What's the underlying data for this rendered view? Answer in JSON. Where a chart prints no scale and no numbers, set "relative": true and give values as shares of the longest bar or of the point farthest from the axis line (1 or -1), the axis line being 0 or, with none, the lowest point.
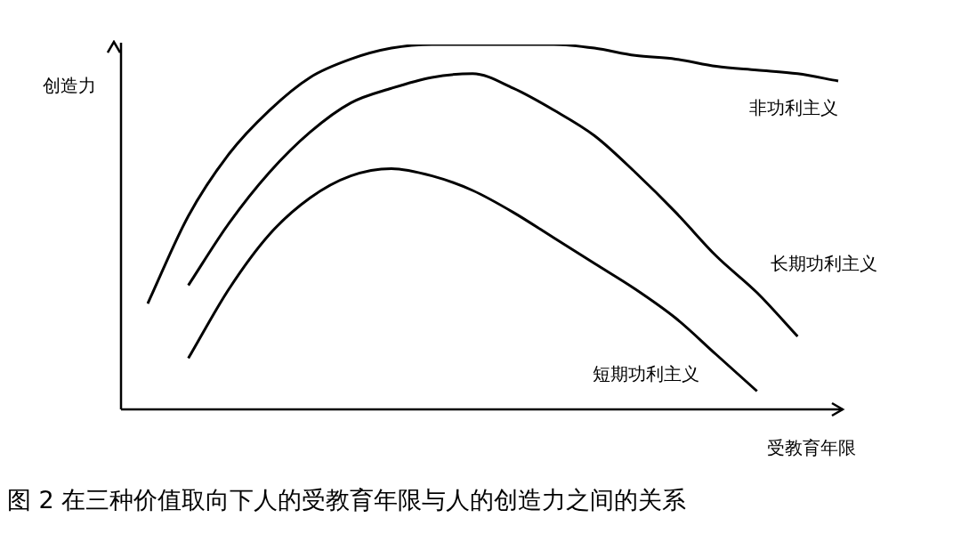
{
  "chart_data": {
    "type": "line",
    "relative": true,
    "title": "图 2  在三种价值取向下人的受教育年限与人的创造力之间的关系",
    "xlabel": "受教育年限",
    "ylabel": "创造力",
    "categories": [
      null,
      null,
      null,
      null,
      null,
      null,
      null,
      null,
      null,
      null,
      null,
      null,
      null,
      null,
      null,
      null,
      null,
      null
    ],
    "marker": "none",
    "line_style": "solid",
    "grid": false,
    "legend": false,
    "series": [
      {
        "name": "非功利主义",
        "color": "#000000",
        "values": [
          0.29,
          0.53,
          0.7,
          0.82,
          0.91,
          0.96,
          0.99,
          1.0,
          1.0,
          1.0,
          1.0,
          0.99,
          0.97,
          0.96,
          0.94,
          0.93,
          0.92,
          0.9
        ]
      },
      {
        "name": "长期功利主义",
        "color": "#000000",
        "values": [
          null,
          0.34,
          0.51,
          0.65,
          0.76,
          0.84,
          0.88,
          0.91,
          0.92,
          0.88,
          0.82,
          0.75,
          0.65,
          0.54,
          0.42,
          0.32,
          0.2,
          null
        ]
      },
      {
        "name": "短期功利主义",
        "color": "#000000",
        "values": [
          null,
          0.14,
          0.33,
          0.48,
          0.58,
          0.64,
          0.66,
          0.64,
          0.6,
          0.54,
          0.47,
          0.4,
          0.33,
          0.25,
          0.15,
          0.05,
          null,
          null
        ]
      }
    ]
  }
}
